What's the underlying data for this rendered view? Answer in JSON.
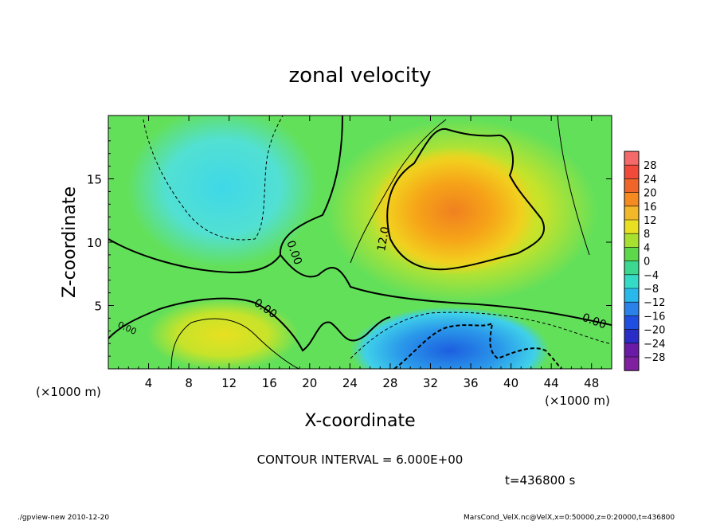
{
  "chart_data": {
    "type": "heatmap",
    "title": "zonal velocity",
    "xlabel": "X-coordinate",
    "ylabel": "Z-coordinate",
    "x_unit_left": "(×1000 m)",
    "x_unit_right": "(×1000 m)",
    "xlim": [
      0,
      50
    ],
    "ylim": [
      0,
      20
    ],
    "x_ticks": [
      4,
      8,
      12,
      16,
      20,
      24,
      28,
      32,
      36,
      40,
      44,
      48
    ],
    "y_ticks": [
      5,
      10,
      15
    ],
    "colorbar_levels": [
      28,
      24,
      20,
      16,
      12,
      8,
      4,
      0,
      -4,
      -8,
      -12,
      -16,
      -20,
      -24,
      -28
    ],
    "contour_labels": [
      "12.0",
      "0.00",
      "0.00",
      "0.00",
      "0.00"
    ],
    "contour_interval_text": "CONTOUR INTERVAL = 6.000E+00",
    "time_text": "t=436800 s",
    "features": [
      {
        "name": "upper-right jet",
        "x_center": 34,
        "z_center": 12,
        "peak": 18
      },
      {
        "name": "lower-right return flow",
        "x_center": 35,
        "z_center": 2,
        "peak": -16
      },
      {
        "name": "upper-left weak return",
        "x_center": 12,
        "z_center": 15,
        "peak": -10
      },
      {
        "name": "lower-left positive",
        "x_center": 11,
        "z_center": 2.5,
        "peak": 8
      }
    ]
  },
  "footer": {
    "left": "./gpview-new  2010-12-20",
    "right": "MarsCond_VelX.nc@VelX,x=0:50000,z=0:20000,t=436800"
  }
}
